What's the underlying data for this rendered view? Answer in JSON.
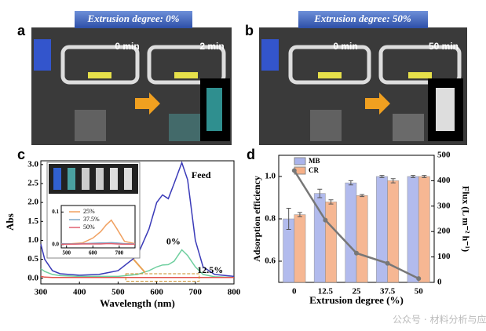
{
  "panels": {
    "a": {
      "label": "a",
      "title": "Extrusion degree: 0%",
      "t0": "0 min",
      "t1": "2 min"
    },
    "b": {
      "label": "b",
      "title": "Extrusion degree: 50%",
      "t0": "0 min",
      "t1": "50 min"
    },
    "c": {
      "label": "c"
    },
    "d": {
      "label": "d"
    }
  },
  "watermark": "公众号 · 材料分析与应用",
  "chart_data": [
    {
      "type": "line",
      "xlabel": "Wavelength (nm)",
      "ylabel": "Abs",
      "xlim": [
        300,
        800
      ],
      "xticks": [
        300,
        400,
        500,
        600,
        700,
        800
      ],
      "ylim": [
        -0.15,
        3.1
      ],
      "yticks": [
        {
          "value": 0,
          "label": "0.0"
        },
        {
          "value": 0.5,
          "label": "0.5"
        },
        {
          "value": 1,
          "label": "1.0"
        },
        {
          "value": 1.5,
          "label": "1.5"
        },
        {
          "value": 2,
          "label": "2.0"
        },
        {
          "value": 2.5,
          "label": "2.5"
        },
        {
          "value": 3,
          "label": "3.0"
        }
      ],
      "x": [
        300,
        310,
        330,
        350,
        400,
        450,
        500,
        550,
        580,
        600,
        615,
        630,
        645,
        665,
        680,
        700,
        720,
        750,
        800
      ],
      "series": [
        {
          "name": "Feed",
          "color": "#3a3ab8",
          "values": [
            0.9,
            0.5,
            0.2,
            0.12,
            0.08,
            0.1,
            0.2,
            0.6,
            1.3,
            2.0,
            2.2,
            2.1,
            2.5,
            3.05,
            2.6,
            1.0,
            0.3,
            0.1,
            0.05
          ]
        },
        {
          "name": "0%",
          "color": "#6fcf9f",
          "values": [
            0.25,
            0.18,
            0.1,
            0.07,
            0.05,
            0.05,
            0.05,
            0.1,
            0.2,
            0.3,
            0.35,
            0.36,
            0.45,
            0.75,
            0.6,
            0.3,
            0.1,
            0.04,
            0.02
          ]
        },
        {
          "name": "12.5%",
          "color": "#e0504a",
          "values": [
            0.05,
            0.03,
            0.02,
            0.02,
            0.02,
            0.02,
            0.02,
            0.02,
            0.02,
            0.02,
            0.02,
            0.02,
            0.02,
            0.02,
            0.02,
            0.02,
            0.02,
            0.02,
            0.02
          ]
        }
      ]
    },
    {
      "type": "line",
      "xlim": [
        480,
        760
      ],
      "xticks": [
        500,
        600,
        700
      ],
      "ylim": [
        -0.01,
        0.12
      ],
      "yticks": [
        {
          "value": 0,
          "label": "0.0"
        },
        {
          "value": 0.1,
          "label": "0.1"
        }
      ],
      "x": [
        480,
        520,
        560,
        600,
        630,
        650,
        670,
        690,
        720,
        760
      ],
      "series": [
        {
          "name": "25%",
          "color": "#f0a060",
          "values": [
            0.002,
            0.003,
            0.005,
            0.02,
            0.04,
            0.06,
            0.075,
            0.05,
            0.01,
            0.003
          ]
        },
        {
          "name": "37.5%",
          "color": "#7fa8c8",
          "values": [
            0.003,
            0.002,
            0.003,
            0.004,
            0.005,
            0.005,
            0.006,
            0.005,
            0.003,
            0.002
          ]
        },
        {
          "name": "50%",
          "color": "#e06070",
          "values": [
            0.001,
            0.001,
            0.002,
            0.002,
            0.002,
            0.003,
            0.003,
            0.002,
            0.001,
            0.001
          ]
        }
      ]
    },
    {
      "type": "bar",
      "xlabel": "Extrusion degree (%)",
      "ylabel": "Adsorption efficiency",
      "y2label": "Flux (L m⁻² h⁻¹)",
      "categories": [
        "0",
        "12.5",
        "25",
        "37.5",
        "50"
      ],
      "ylim": [
        0.5,
        1.1
      ],
      "yticks": [
        0.6,
        0.8,
        {
          "value": 1,
          "label": "1.0"
        }
      ],
      "y2lim": [
        0,
        500
      ],
      "y2ticks": [
        0,
        100,
        200,
        300,
        400,
        500
      ],
      "series": [
        {
          "name": "MB",
          "color": "#aab4ec",
          "values": [
            0.8,
            0.92,
            0.97,
            1.0,
            1.0
          ],
          "errors": [
            0.05,
            0.02,
            0.01,
            0.005,
            0.005
          ]
        },
        {
          "name": "CR",
          "color": "#f6b088",
          "values": [
            0.82,
            0.88,
            0.91,
            0.98,
            1.0
          ],
          "errors": [
            0.01,
            0.01,
            0.005,
            0.01,
            0.005
          ]
        },
        {
          "type": "line",
          "axis": "y2",
          "color": "#777777",
          "values": [
            440,
            245,
            115,
            75,
            15
          ]
        }
      ]
    }
  ]
}
